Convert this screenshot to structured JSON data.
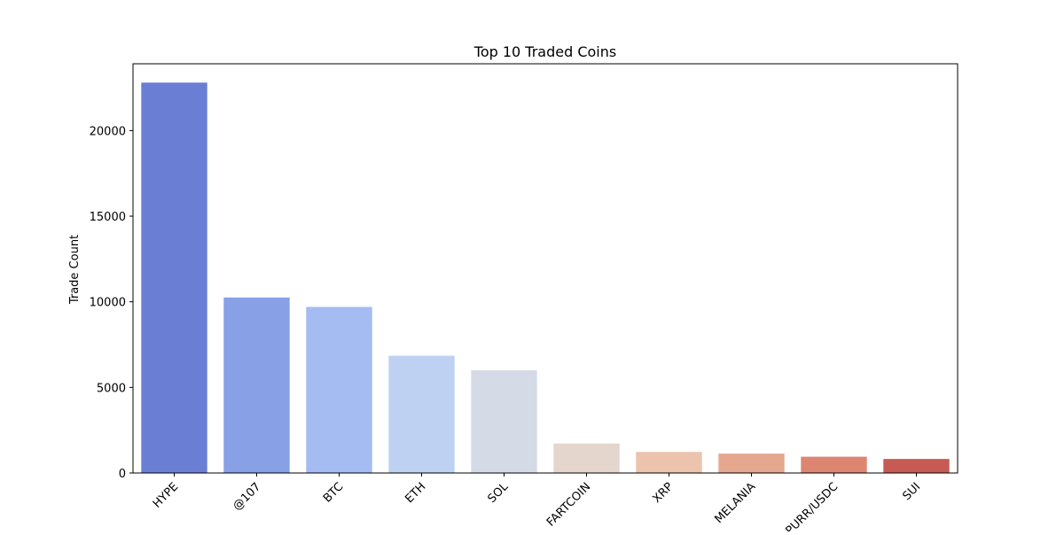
{
  "chart_data": {
    "type": "bar",
    "title": "Top 10 Traded Coins",
    "xlabel": "",
    "ylabel": "Trade Count",
    "categories": [
      "HYPE",
      "@107",
      "BTC",
      "ETH",
      "SOL",
      "FARTCOIN",
      "XRP",
      "MELANIA",
      "PURR/USDC",
      "SUI"
    ],
    "values": [
      22800,
      10250,
      9700,
      6850,
      6000,
      1720,
      1230,
      1130,
      950,
      820
    ],
    "colors": [
      "#6a7fd4",
      "#87a0e6",
      "#a4bcf2",
      "#bfd1f2",
      "#d5dbe6",
      "#e4d6cc",
      "#ecc3ad",
      "#e5a78d",
      "#dc8672",
      "#c65b53"
    ],
    "ylim": [
      0,
      23900
    ],
    "yticks": [
      0,
      5000,
      10000,
      15000,
      20000
    ],
    "ytick_labels": [
      "0",
      "5000",
      "10000",
      "15000",
      "20000"
    ],
    "grid": false,
    "legend": "none"
  }
}
